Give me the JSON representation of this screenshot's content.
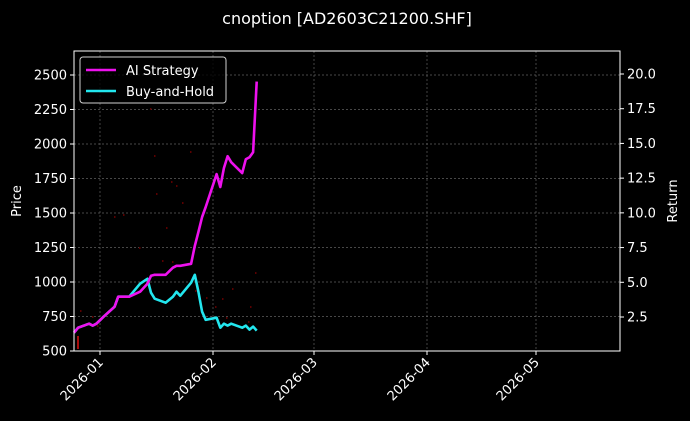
{
  "chart_data": {
    "type": "line",
    "title": "cnoption [AD2603C21200.SHF]",
    "xlabel": "",
    "ylabel": "Price",
    "y2label": "Return",
    "x_ticks": [
      "2026-01",
      "2026-02",
      "2026-03",
      "2026-04",
      "2026-05"
    ],
    "y_ticks": [
      500,
      750,
      1000,
      1250,
      1500,
      1750,
      2000,
      2250,
      2500
    ],
    "y2_ticks": [
      2.5,
      5.0,
      7.5,
      10.0,
      12.5,
      15.0,
      17.5,
      20.0
    ],
    "ylim": [
      490,
      2660
    ],
    "y2lim": [
      0.1,
      21.5
    ],
    "grid": true,
    "legend_position": "upper left",
    "legend": [
      "AI Strategy",
      "Buy-and-Hold"
    ],
    "colors": {
      "ai_strategy": "#ff00ff",
      "buy_and_hold": "#00ffff",
      "candles": "#5a0000",
      "background": "#000000",
      "axis": "#ffffff",
      "grid": "#666666"
    },
    "x": [
      "2025-12-24",
      "2025-12-26",
      "2025-12-29",
      "2025-12-30",
      "2025-12-31",
      "2026-01-02",
      "2026-01-05",
      "2026-01-06",
      "2026-01-08",
      "2026-01-09",
      "2026-01-12",
      "2026-01-14",
      "2026-01-15",
      "2026-01-16",
      "2026-01-19",
      "2026-01-21",
      "2026-01-22",
      "2026-01-23",
      "2026-01-26",
      "2026-01-27",
      "2026-01-28",
      "2026-01-29",
      "2026-01-30",
      "2026-02-02",
      "2026-02-03",
      "2026-02-04",
      "2026-02-05",
      "2026-02-06",
      "2026-02-09",
      "2026-02-10",
      "2026-02-11",
      "2026-02-12",
      "2026-02-13"
    ],
    "series": [
      {
        "name": "AI Strategy",
        "axis": "Return",
        "values": [
          1.37,
          1.73,
          2.02,
          1.88,
          2.02,
          2.52,
          3.24,
          3.96,
          3.96,
          3.96,
          4.32,
          4.9,
          5.47,
          5.54,
          5.54,
          6.05,
          6.19,
          6.19,
          6.33,
          7.62,
          8.62,
          9.7,
          10.42,
          12.79,
          11.86,
          13.22,
          14.08,
          13.65,
          12.86,
          13.86,
          14.01,
          14.37,
          19.45
        ]
      },
      {
        "name": "Buy-and-Hold",
        "axis": "Return",
        "values": [
          1.37,
          1.73,
          2.02,
          1.88,
          2.02,
          2.52,
          3.24,
          3.96,
          3.96,
          3.96,
          4.9,
          5.25,
          4.25,
          3.82,
          3.53,
          3.96,
          4.32,
          4.03,
          4.97,
          5.54,
          4.32,
          2.88,
          2.3,
          2.45,
          1.73,
          2.02,
          1.88,
          2.02,
          1.73,
          1.88,
          1.59,
          1.81,
          1.52
        ]
      }
    ],
    "price_candles_wicks_visible": "faint dark-red scatter"
  },
  "header": {
    "title": "cnoption [AD2603C21200.SHF]"
  },
  "axes": {
    "left_label": "Price",
    "right_label": "Return",
    "left_ticks": [
      "500",
      "750",
      "1000",
      "1250",
      "1500",
      "1750",
      "2000",
      "2250",
      "2500"
    ],
    "right_ticks": [
      "2.5",
      "5.0",
      "7.5",
      "10.0",
      "12.5",
      "15.0",
      "17.5",
      "20.0"
    ],
    "x_ticks": [
      "2026-01",
      "2026-02",
      "2026-03",
      "2026-04",
      "2026-05"
    ]
  },
  "legend": {
    "items": [
      {
        "label": "AI Strategy",
        "color": "#ff00ff"
      },
      {
        "label": "Buy-and-Hold",
        "color": "#00ffff"
      }
    ]
  }
}
